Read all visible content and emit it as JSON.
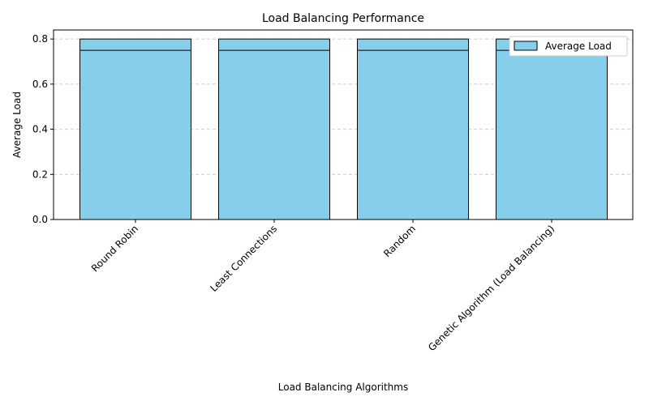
{
  "chart_data": {
    "type": "bar",
    "title": "Load Balancing Performance",
    "xlabel": "Load Balancing Algorithms",
    "ylabel": "Average Load",
    "categories": [
      "Round Robin",
      "Least Connections",
      "Random",
      "Genetic Algorithm (Load Balancing)"
    ],
    "series": [
      {
        "name": "Average Load",
        "values": [
          0.8,
          0.8,
          0.8,
          0.8
        ]
      }
    ],
    "overlay_line_values": [
      0.75,
      0.75,
      0.75,
      0.75
    ],
    "yticks": [
      "0.0",
      "0.2",
      "0.4",
      "0.6",
      "0.8"
    ],
    "ylim": [
      0,
      0.84
    ],
    "grid": "y-dashed",
    "legend_position": "top-right",
    "bar_color": "#87ceeb",
    "edge_color": "#000000",
    "x_tick_rotation_deg": 45
  }
}
